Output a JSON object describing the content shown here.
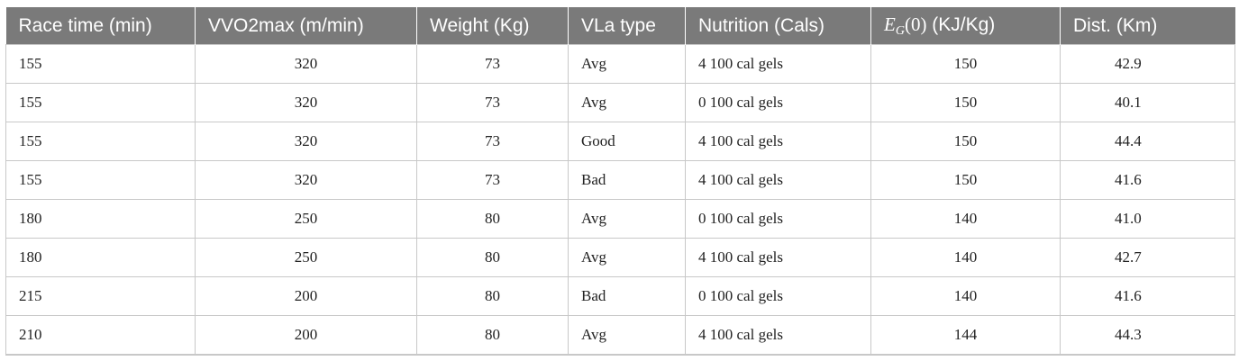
{
  "headers": {
    "race_time": "Race time (min)",
    "vvo2max": "VVO2max (m/min)",
    "weight": "Weight (Kg)",
    "vla": "VLa type",
    "nutrition": "Nutrition (Cals)",
    "eg_symbol": "E",
    "eg_sub": "G",
    "eg_arg": "(0)",
    "eg_unit": " (KJ/Kg)",
    "dist": "Dist. (Km)"
  },
  "rows": [
    [
      "155",
      "320",
      "73",
      "Avg",
      "4 100 cal gels",
      "150",
      "42.9"
    ],
    [
      "155",
      "320",
      "73",
      "Avg",
      "0 100 cal gels",
      "150",
      "40.1"
    ],
    [
      "155",
      "320",
      "73",
      "Good",
      "4 100 cal gels",
      "150",
      "44.4"
    ],
    [
      "155",
      "320",
      "73",
      "Bad",
      "4 100 cal gels",
      "150",
      "41.6"
    ],
    [
      "180",
      "250",
      "80",
      "Avg",
      "0 100 cal gels",
      "140",
      "41.0"
    ],
    [
      "180",
      "250",
      "80",
      "Avg",
      "4 100 cal gels",
      "140",
      "42.7"
    ],
    [
      "215",
      "200",
      "80",
      "Bad",
      "0 100 cal gels",
      "140",
      "41.6"
    ],
    [
      "210",
      "200",
      "80",
      "Avg",
      "4 100 cal gels",
      "144",
      "44.3"
    ]
  ]
}
